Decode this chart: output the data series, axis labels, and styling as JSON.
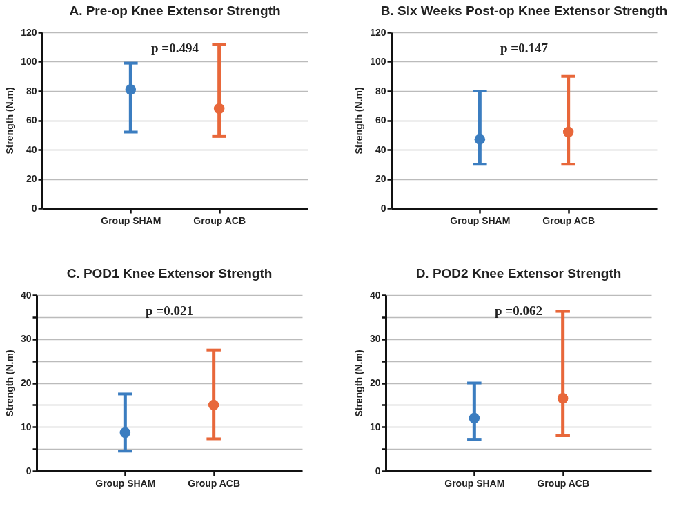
{
  "chart_data": [
    {
      "type": "scatter",
      "title": "A. Pre-op Knee Extensor Strength",
      "ylabel": "Strength (N.m)",
      "categories": [
        "Group SHAM",
        "Group ACB"
      ],
      "values": [
        81,
        68
      ],
      "errors": [
        [
          52,
          99
        ],
        [
          49,
          112
        ]
      ],
      "colors": [
        "#3b7dc0",
        "#e8673a"
      ],
      "ylim": [
        0,
        120
      ],
      "yticks": [
        0,
        20,
        40,
        60,
        80,
        100,
        120
      ],
      "grid": "y",
      "marker": "circle",
      "annotations": [
        "p =0.494"
      ]
    },
    {
      "type": "scatter",
      "title": "B. Six Weeks Post-op Knee Extensor Strength",
      "ylabel": "Strength (N.m)",
      "categories": [
        "Group SHAM",
        "Group ACB"
      ],
      "values": [
        47,
        52
      ],
      "errors": [
        [
          30,
          80
        ],
        [
          30,
          90
        ]
      ],
      "colors": [
        "#3b7dc0",
        "#e8673a"
      ],
      "ylim": [
        0,
        120
      ],
      "yticks": [
        0,
        20,
        40,
        60,
        80,
        100,
        120
      ],
      "grid": "y",
      "marker": "circle",
      "annotations": [
        "p =0.147"
      ]
    },
    {
      "type": "scatter",
      "title": "C. POD1 Knee Extensor Strength",
      "ylabel": "Strength (N.m)",
      "categories": [
        "Group SHAM",
        "Group ACB"
      ],
      "values": [
        8.7,
        15
      ],
      "errors": [
        [
          4.5,
          17.5
        ],
        [
          7.3,
          27.5
        ]
      ],
      "colors": [
        "#3b7dc0",
        "#e8673a"
      ],
      "ylim": [
        0,
        40
      ],
      "yticks": [
        0,
        {
          "value": 5,
          "label": null
        },
        10,
        {
          "value": 15,
          "label": null
        },
        20,
        {
          "value": 25,
          "label": null
        },
        30,
        {
          "value": 35,
          "label": null
        },
        40
      ],
      "grid": "y",
      "marker": "circle",
      "annotations": [
        "p =0.021"
      ]
    },
    {
      "type": "scatter",
      "title": "D. POD2 Knee Extensor Strength",
      "ylabel": "Strength (N.m)",
      "categories": [
        "Group SHAM",
        "Group ACB"
      ],
      "values": [
        12,
        16.5
      ],
      "errors": [
        [
          7.2,
          20
        ],
        [
          8,
          36.3
        ]
      ],
      "colors": [
        "#3b7dc0",
        "#e8673a"
      ],
      "ylim": [
        0,
        40
      ],
      "yticks": [
        0,
        {
          "value": 5,
          "label": null
        },
        10,
        {
          "value": 15,
          "label": null
        },
        20,
        {
          "value": 25,
          "label": null
        },
        30,
        {
          "value": 35,
          "label": null
        },
        40
      ],
      "grid": "y",
      "marker": "circle",
      "annotations": [
        "p =0.062"
      ]
    }
  ]
}
